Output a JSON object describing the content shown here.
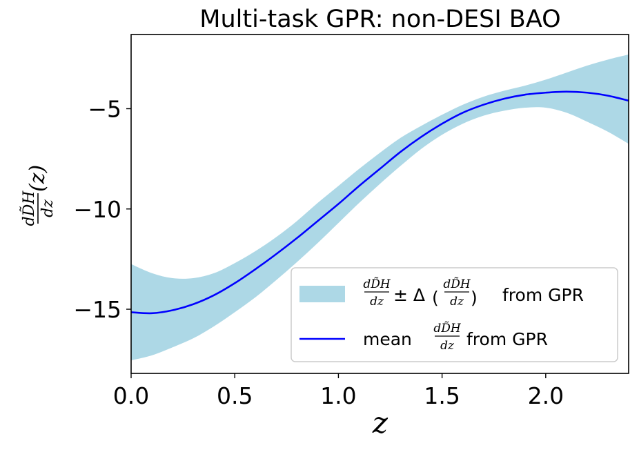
{
  "chart_data": {
    "type": "area",
    "title": "Multi-task GPR: non-DESI BAO",
    "xlabel": "z",
    "ylabel": {
      "numerator": "dD̃H",
      "denominator": "dz",
      "argument": "(z)"
    },
    "xlim": [
      0.0,
      2.4
    ],
    "ylim": [
      -18.2,
      -1.3
    ],
    "x_ticks": [
      0.0,
      0.5,
      1.0,
      1.5,
      2.0
    ],
    "x_tick_labels": [
      "0.0",
      "0.5",
      "1.0",
      "1.5",
      "2.0"
    ],
    "y_ticks": [
      -15,
      -10,
      -5
    ],
    "y_tick_labels": [
      "−15",
      "−10",
      "−5"
    ],
    "grid": false,
    "legend_position": "lower-right",
    "colors": {
      "band": "#add8e6",
      "mean": "#0000ff",
      "axes": "#000000"
    },
    "series": [
      {
        "name": "dD̃H/dz ± Δ(dD̃H/dz) from GPR",
        "kind": "band",
        "x": [
          0.0,
          0.1,
          0.2,
          0.3,
          0.4,
          0.5,
          0.6,
          0.7,
          0.8,
          0.9,
          1.0,
          1.1,
          1.2,
          1.3,
          1.4,
          1.5,
          1.6,
          1.7,
          1.8,
          1.9,
          2.0,
          2.1,
          2.2,
          2.3,
          2.4
        ],
        "lower": [
          -17.55,
          -17.3,
          -16.9,
          -16.45,
          -15.85,
          -15.15,
          -14.4,
          -13.55,
          -12.65,
          -11.7,
          -10.7,
          -9.7,
          -8.75,
          -7.85,
          -7.0,
          -6.3,
          -5.75,
          -5.35,
          -5.1,
          -4.95,
          -4.95,
          -5.2,
          -5.65,
          -6.15,
          -6.75
        ],
        "upper": [
          -12.75,
          -13.2,
          -13.45,
          -13.45,
          -13.2,
          -12.7,
          -12.1,
          -11.4,
          -10.6,
          -9.7,
          -8.85,
          -8.0,
          -7.2,
          -6.45,
          -5.85,
          -5.3,
          -4.8,
          -4.4,
          -4.1,
          -3.85,
          -3.55,
          -3.2,
          -2.85,
          -2.55,
          -2.3
        ]
      },
      {
        "name": "mean dD̃H/dz from GPR",
        "kind": "line",
        "x": [
          0.0,
          0.1,
          0.2,
          0.3,
          0.4,
          0.5,
          0.6,
          0.7,
          0.8,
          0.9,
          1.0,
          1.1,
          1.2,
          1.3,
          1.4,
          1.5,
          1.6,
          1.7,
          1.8,
          1.9,
          2.0,
          2.1,
          2.2,
          2.3,
          2.4
        ],
        "values": [
          -15.15,
          -15.2,
          -15.05,
          -14.75,
          -14.3,
          -13.7,
          -13.0,
          -12.25,
          -11.45,
          -10.6,
          -9.75,
          -8.85,
          -8.0,
          -7.15,
          -6.4,
          -5.75,
          -5.2,
          -4.8,
          -4.5,
          -4.3,
          -4.2,
          -4.15,
          -4.2,
          -4.35,
          -4.6
        ]
      }
    ],
    "legend": {
      "band_label_suffix": "from GPR",
      "line_label_prefix": "mean",
      "line_label_suffix": "from GPR"
    }
  }
}
